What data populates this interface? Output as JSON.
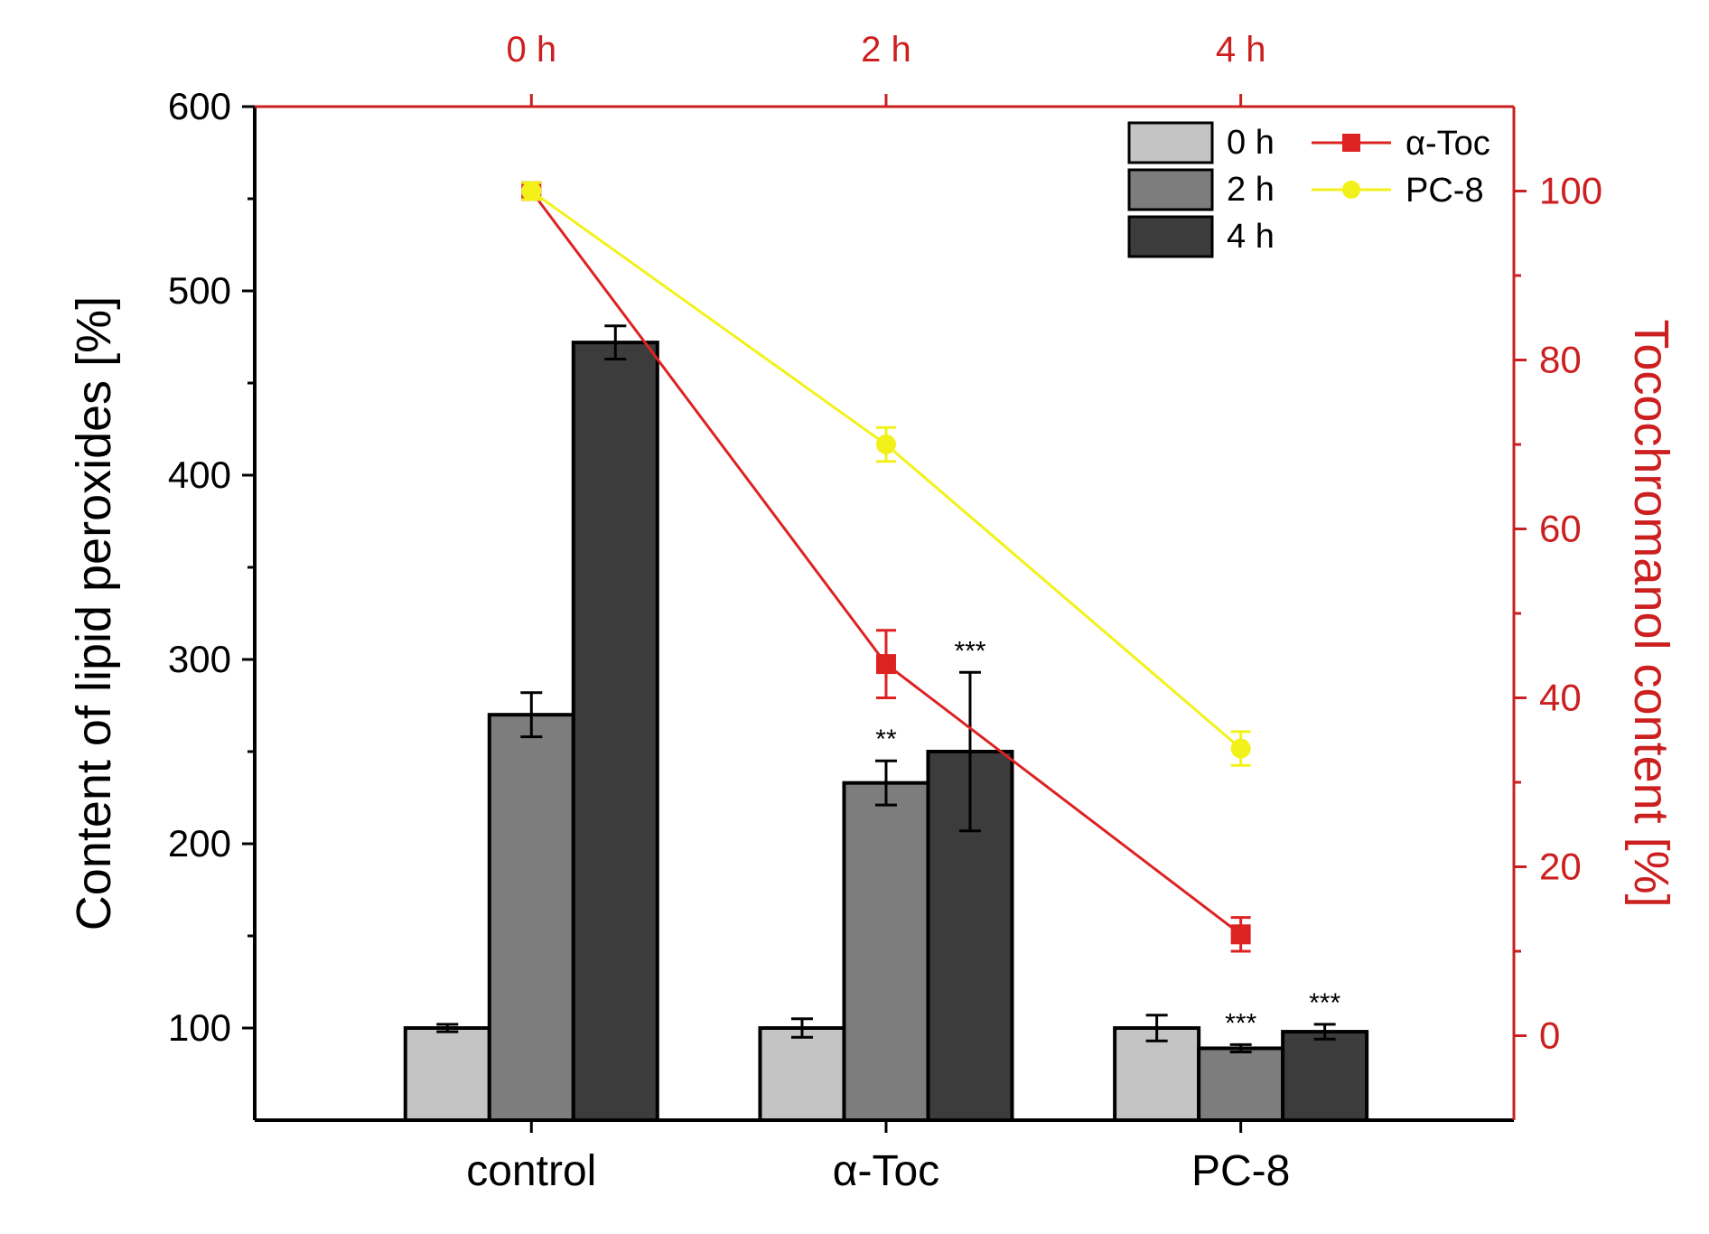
{
  "chart_data": {
    "type": "bar",
    "categories": [
      "control",
      "α-Toc",
      "PC-8"
    ],
    "ylabel": "Content of lipid peroxides [%]",
    "ylim": [
      50,
      600
    ],
    "yticks": [
      100,
      200,
      300,
      400,
      500,
      600
    ],
    "series": [
      {
        "name": "0 h",
        "color": "#c4c4c4",
        "values": [
          100,
          100,
          100
        ],
        "errors": [
          2,
          5,
          7
        ]
      },
      {
        "name": "2 h",
        "color": "#7d7d7d",
        "values": [
          270,
          233,
          89
        ],
        "errors": [
          12,
          12,
          2
        ]
      },
      {
        "name": "4 h",
        "color": "#3c3c3c",
        "values": [
          472,
          250,
          98
        ],
        "errors": [
          9,
          43,
          4
        ]
      }
    ],
    "significance": [
      {
        "category": "α-Toc",
        "series": "2 h",
        "label": "**"
      },
      {
        "category": "α-Toc",
        "series": "4 h",
        "label": "***"
      },
      {
        "category": "PC-8",
        "series": "2 h",
        "label": "***"
      },
      {
        "category": "PC-8",
        "series": "4 h",
        "label": "***"
      }
    ],
    "top_axis": {
      "ticks": [
        "0 h",
        "2 h",
        "4 h"
      ],
      "color": "#cc1f1f"
    },
    "right_axis": {
      "label": "Tocochromanol content [%]",
      "color": "#cc1f1f",
      "ylim": [
        -10,
        110
      ],
      "yticks": [
        0,
        20,
        40,
        60,
        80,
        100
      ]
    },
    "lines": [
      {
        "name": "α-Toc",
        "color": "#dd2222",
        "marker": "square",
        "values": [
          100,
          44,
          12
        ],
        "errors": [
          1,
          4,
          2
        ]
      },
      {
        "name": "PC-8",
        "color": "#f2f21a",
        "marker": "circle",
        "values": [
          100,
          70,
          34
        ],
        "errors": [
          1,
          2,
          2
        ]
      }
    ]
  }
}
